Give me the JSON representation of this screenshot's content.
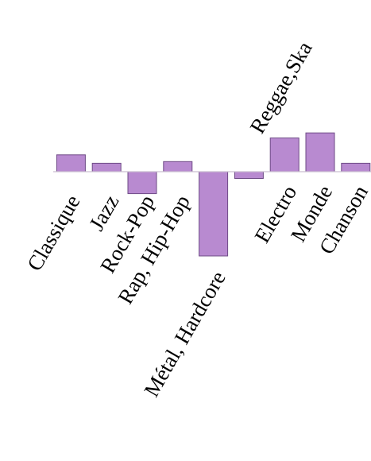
{
  "chart_data": {
    "type": "bar",
    "title": "",
    "xlabel": "",
    "ylabel": "",
    "categories": [
      "Classique",
      "Jazz",
      "Rock-Pop",
      "Rap, Hip-Hop",
      "Métal, Hardcore",
      "Reggae,Ska",
      "Electro",
      "Monde",
      "Chanson"
    ],
    "values": [
      1.0,
      0.5,
      -1.3,
      0.6,
      -5.0,
      -0.4,
      2.0,
      2.3,
      0.5
    ],
    "ylim": [
      -5.0,
      2.3
    ],
    "grid": false,
    "legend": "none",
    "bar_color": "#b88ad0",
    "bar_edge_color": "#6e4a86",
    "baseline_color": "#c9bfd0"
  }
}
